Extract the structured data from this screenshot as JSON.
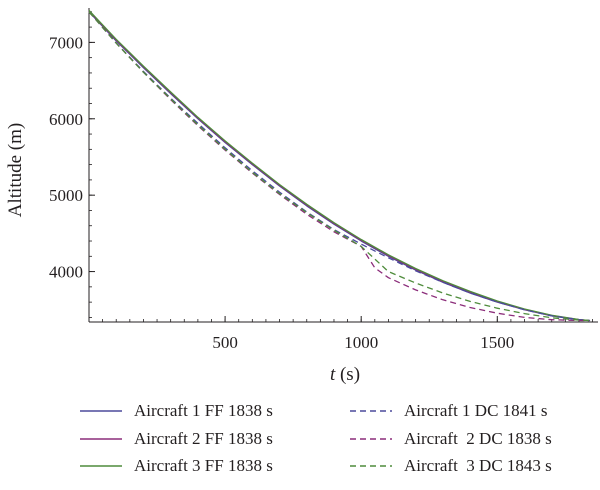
{
  "chart_data": {
    "type": "line",
    "title": "",
    "xlabel_italic": "t",
    "xlabel_unit": " (s)",
    "ylabel": "Altitude (m)",
    "xlim": [
      0,
      1870
    ],
    "ylim": [
      3340,
      7450
    ],
    "x_ticks": [
      500,
      1000,
      1500
    ],
    "y_ticks": [
      4000,
      5000,
      6000,
      7000
    ],
    "x_minor_step": 50,
    "y_minor_step": 200,
    "grid": false,
    "legend_position": "bottom",
    "series": [
      {
        "name": "Aircraft 1 FF 1838 s",
        "color": "#4b4a9c",
        "dash": "solid",
        "x": [
          0,
          100,
          200,
          300,
          400,
          500,
          600,
          700,
          800,
          900,
          1000,
          1100,
          1200,
          1300,
          1400,
          1500,
          1600,
          1700,
          1800,
          1838
        ],
        "y": [
          7400,
          7020,
          6670,
          6330,
          6000,
          5690,
          5400,
          5120,
          4860,
          4620,
          4400,
          4200,
          4020,
          3860,
          3720,
          3600,
          3500,
          3420,
          3370,
          3360
        ]
      },
      {
        "name": "Aircraft 2 FF 1838 s",
        "color": "#8b2d7a",
        "dash": "solid",
        "x": [
          0,
          100,
          200,
          300,
          400,
          500,
          600,
          700,
          800,
          900,
          1000,
          1100,
          1200,
          1300,
          1400,
          1500,
          1600,
          1700,
          1800,
          1838
        ],
        "y": [
          7410,
          7030,
          6680,
          6340,
          6010,
          5700,
          5410,
          5130,
          4870,
          4630,
          4410,
          4210,
          4030,
          3870,
          3730,
          3610,
          3505,
          3425,
          3372,
          3360
        ]
      },
      {
        "name": "Aircraft 3 FF 1838 s",
        "color": "#4f8c3c",
        "dash": "solid",
        "x": [
          0,
          100,
          200,
          300,
          400,
          500,
          600,
          700,
          800,
          900,
          1000,
          1100,
          1200,
          1300,
          1400,
          1500,
          1600,
          1700,
          1800,
          1838
        ],
        "y": [
          7420,
          7040,
          6690,
          6350,
          6020,
          5710,
          5420,
          5140,
          4880,
          4640,
          4420,
          4220,
          4040,
          3880,
          3740,
          3615,
          3510,
          3428,
          3373,
          3360
        ]
      },
      {
        "name": "Aircraft 1 DC 1841 s",
        "color": "#4b4a9c",
        "dash": "dashed",
        "x": [
          0,
          100,
          200,
          300,
          400,
          500,
          600,
          700,
          800,
          900,
          1000,
          1100,
          1200,
          1300,
          1400,
          1500,
          1600,
          1700,
          1800,
          1841
        ],
        "y": [
          7400,
          6990,
          6620,
          6270,
          5940,
          5620,
          5320,
          5040,
          4780,
          4550,
          4360,
          4180,
          4010,
          3860,
          3720,
          3600,
          3500,
          3420,
          3370,
          3360
        ]
      },
      {
        "name": "Aircraft  2 DC 1838 s",
        "color": "#8b2d7a",
        "dash": "dashed",
        "x": [
          0,
          100,
          200,
          300,
          400,
          500,
          600,
          700,
          800,
          900,
          1000,
          1050,
          1100,
          1200,
          1300,
          1400,
          1500,
          1600,
          1700,
          1800,
          1838
        ],
        "y": [
          7400,
          6990,
          6610,
          6250,
          5910,
          5590,
          5290,
          5010,
          4750,
          4520,
          4330,
          4050,
          3920,
          3760,
          3630,
          3530,
          3455,
          3400,
          3370,
          3360,
          3360
        ]
      },
      {
        "name": "Aircraft  3 DC 1843 s",
        "color": "#4f8c3c",
        "dash": "dashed",
        "x": [
          0,
          100,
          200,
          300,
          400,
          500,
          600,
          700,
          800,
          900,
          1000,
          1100,
          1200,
          1300,
          1400,
          1500,
          1600,
          1700,
          1800,
          1843
        ],
        "y": [
          7400,
          6990,
          6610,
          6260,
          5920,
          5600,
          5300,
          5020,
          4770,
          4540,
          4330,
          4000,
          3850,
          3720,
          3610,
          3520,
          3450,
          3395,
          3365,
          3360
        ]
      }
    ]
  }
}
